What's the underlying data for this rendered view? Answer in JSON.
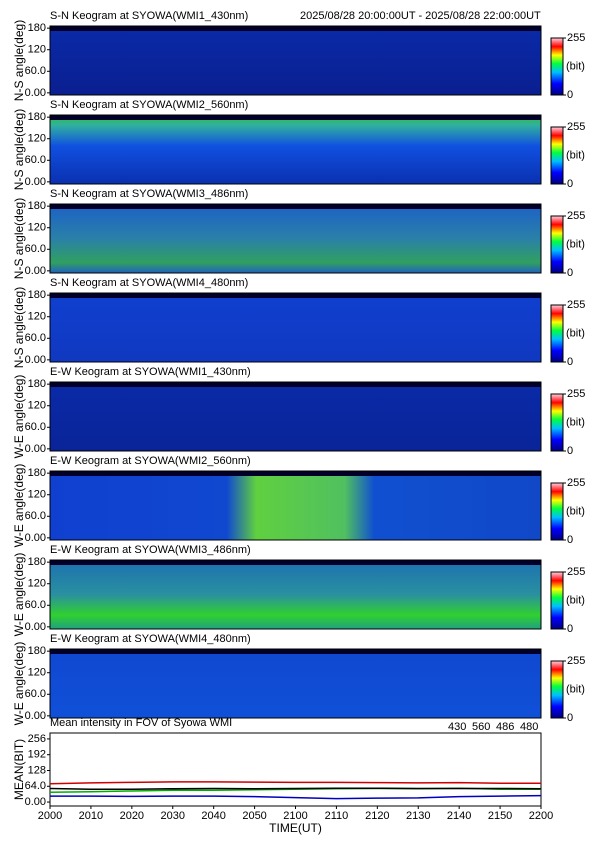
{
  "time_range": "2025/08/28 20:00:00UT - 2025/08/28 22:00:00UT",
  "chart_data": [
    {
      "type": "keogram",
      "title": "S-N Keogram at SYOWA(WMI1_430nm)",
      "ylabel": "N-S angle(deg)",
      "ylim": [
        -6,
        186
      ],
      "yticks": [
        {
          "value": 0,
          "label": "0.00"
        },
        {
          "value": 60,
          "label": "60.0"
        },
        120,
        180
      ],
      "clim": [
        0,
        255
      ],
      "cticks": [
        0,
        255
      ],
      "clabel": "(bit)"
    },
    {
      "type": "keogram",
      "title": "S-N Keogram at SYOWA(WMI2_560nm)",
      "ylabel": "N-S angle(deg)",
      "ylim": [
        -6,
        186
      ],
      "yticks": [
        {
          "value": 0,
          "label": "0.00"
        },
        {
          "value": 60,
          "label": "60.0"
        },
        120,
        180
      ],
      "clim": [
        0,
        255
      ],
      "cticks": [
        0,
        255
      ],
      "clabel": "(bit)"
    },
    {
      "type": "keogram",
      "title": "S-N Keogram at SYOWA(WMI3_486nm)",
      "ylabel": "N-S angle(deg)",
      "ylim": [
        -6,
        186
      ],
      "yticks": [
        {
          "value": 0,
          "label": "0.00"
        },
        {
          "value": 60,
          "label": "60.0"
        },
        120,
        180
      ],
      "clim": [
        0,
        255
      ],
      "cticks": [
        0,
        255
      ],
      "clabel": "(bit)"
    },
    {
      "type": "keogram",
      "title": "S-N Keogram at SYOWA(WMI4_480nm)",
      "ylabel": "N-S angle(deg)",
      "ylim": [
        -6,
        186
      ],
      "yticks": [
        {
          "value": 0,
          "label": "0.00"
        },
        {
          "value": 60,
          "label": "60.0"
        },
        120,
        180
      ],
      "clim": [
        0,
        255
      ],
      "cticks": [
        0,
        255
      ],
      "clabel": "(bit)"
    },
    {
      "type": "keogram",
      "title": "E-W Keogram at SYOWA(WMI1_430nm)",
      "ylabel": "W-E angle(deg)",
      "ylim": [
        -6,
        186
      ],
      "yticks": [
        {
          "value": 0,
          "label": "0.00"
        },
        {
          "value": 60,
          "label": "60.0"
        },
        120,
        180
      ],
      "clim": [
        0,
        255
      ],
      "cticks": [
        0,
        255
      ],
      "clabel": "(bit)"
    },
    {
      "type": "keogram",
      "title": "E-W Keogram at SYOWA(WMI2_560nm)",
      "ylabel": "W-E angle(deg)",
      "ylim": [
        -6,
        186
      ],
      "yticks": [
        {
          "value": 0,
          "label": "0.00"
        },
        {
          "value": 60,
          "label": "60.0"
        },
        120,
        180
      ],
      "clim": [
        0,
        255
      ],
      "cticks": [
        0,
        255
      ],
      "clabel": "(bit)"
    },
    {
      "type": "keogram",
      "title": "E-W Keogram at SYOWA(WMI3_486nm)",
      "ylabel": "W-E angle(deg)",
      "ylim": [
        -6,
        186
      ],
      "yticks": [
        {
          "value": 0,
          "label": "0.00"
        },
        {
          "value": 60,
          "label": "60.0"
        },
        120,
        180
      ],
      "clim": [
        0,
        255
      ],
      "cticks": [
        0,
        255
      ],
      "clabel": "(bit)"
    },
    {
      "type": "keogram",
      "title": "E-W Keogram at SYOWA(WMI4_480nm)",
      "ylabel": "W-E angle(deg)",
      "ylim": [
        -6,
        186
      ],
      "yticks": [
        {
          "value": 0,
          "label": "0.00"
        },
        {
          "value": 60,
          "label": "60.0"
        },
        120,
        180
      ],
      "clim": [
        0,
        255
      ],
      "cticks": [
        0,
        255
      ],
      "clabel": "(bit)"
    },
    {
      "type": "line",
      "title": "Mean intensity in FOV of Syowa WMI",
      "ylabel": "MEAN(BIT)",
      "xlabel": "TIME(UT)",
      "x": [
        0,
        10,
        20,
        30,
        40,
        50,
        60,
        70,
        80,
        90,
        100,
        110,
        120
      ],
      "xlim": [
        0,
        120
      ],
      "xticks": [
        {
          "value": 0,
          "label": "2000"
        },
        {
          "value": 10,
          "label": "2010"
        },
        {
          "value": 20,
          "label": "2020"
        },
        {
          "value": 30,
          "label": "2030"
        },
        {
          "value": 40,
          "label": "2040"
        },
        {
          "value": 50,
          "label": "2050"
        },
        {
          "value": 60,
          "label": "2100"
        },
        {
          "value": 70,
          "label": "2110"
        },
        {
          "value": 80,
          "label": "2120"
        },
        {
          "value": 90,
          "label": "2130"
        },
        {
          "value": 100,
          "label": "2140"
        },
        {
          "value": 110,
          "label": "2150"
        },
        {
          "value": 120,
          "label": "2200"
        }
      ],
      "ylim": [
        -16,
        280
      ],
      "yticks": [
        {
          "value": 0,
          "label": "0.00"
        },
        {
          "value": 64,
          "label": "64.0"
        },
        128,
        192,
        256
      ],
      "series": [
        {
          "name": "430",
          "color": "#0000c0",
          "values": [
            24,
            24,
            23,
            24,
            24,
            22,
            18,
            14,
            16,
            17,
            22,
            24,
            26
          ]
        },
        {
          "name": "560",
          "color": "#00b000",
          "values": [
            40,
            42,
            45,
            48,
            48,
            50,
            52,
            54,
            55,
            54,
            56,
            52,
            52
          ]
        },
        {
          "name": "486",
          "color": "#d00000",
          "values": [
            74,
            78,
            80,
            82,
            82,
            81,
            80,
            80,
            79,
            78,
            79,
            76,
            76
          ]
        },
        {
          "name": "480",
          "color": "#000000",
          "values": [
            55,
            52,
            52,
            54,
            55,
            54,
            55,
            56,
            56,
            55,
            55,
            55,
            54
          ]
        }
      ]
    }
  ]
}
